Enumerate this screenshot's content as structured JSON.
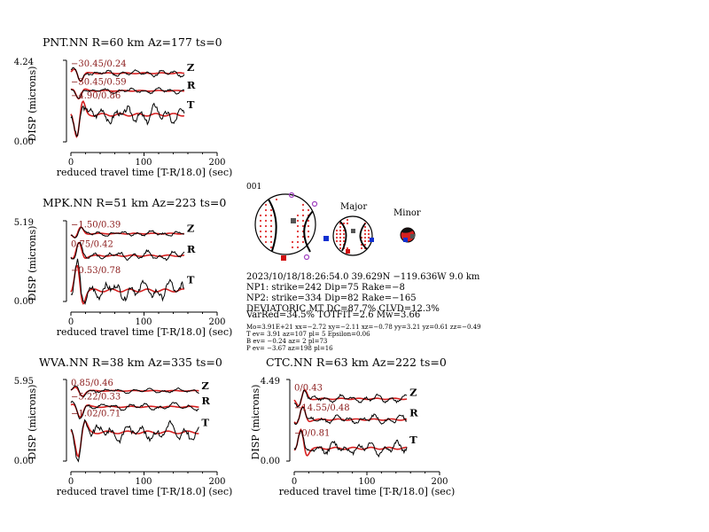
{
  "chart_data": [
    {
      "type": "line",
      "title": "PNT.NN R=60 km Az=177 ts=0",
      "xlabel": "reduced travel time [T-R/18.0] (sec)",
      "ylabel": "DISP (microns)",
      "xlim": [
        0,
        200
      ],
      "xticks": [
        "0",
        "100",
        "200"
      ],
      "ymax_label": "4.24",
      "ymin_label": "0.00",
      "series": [
        {
          "name": "Z",
          "label": "−30.45/0.24",
          "length": 155,
          "level": 0.86,
          "amp": 0.07,
          "seed": 1
        },
        {
          "name": "R",
          "label": "−30.45/0.59",
          "length": 155,
          "level": 0.64,
          "amp": 0.06,
          "seed": 2
        },
        {
          "name": "T",
          "label": "−4.90/0.86",
          "length": 155,
          "level": 0.34,
          "amp": 0.2,
          "seed": 3
        }
      ]
    },
    {
      "type": "line",
      "title": "MPK.NN R=51 km Az=223 ts=0",
      "xlabel": "reduced travel time [T-R/18.0] (sec)",
      "ylabel": "DISP (microns)",
      "xlim": [
        0,
        200
      ],
      "xticks": [
        "0",
        "100",
        "200"
      ],
      "ymax_label": "5.19",
      "ymin_label": "0.00",
      "series": [
        {
          "name": "Z",
          "label": "−1.50/0.39",
          "length": 155,
          "level": 0.86,
          "amp": 0.06,
          "seed": 4
        },
        {
          "name": "R",
          "label": "0.75/0.42",
          "length": 155,
          "level": 0.58,
          "amp": 0.1,
          "seed": 5
        },
        {
          "name": "T",
          "label": "−0.53/0.78",
          "length": 155,
          "level": 0.14,
          "amp": 0.22,
          "seed": 6
        }
      ]
    },
    {
      "type": "line",
      "title": "WVA.NN R=38 km Az=335 ts=0",
      "xlabel": "reduced travel time [T-R/18.0] (sec)",
      "ylabel": "DISP (microns)",
      "xlim": [
        0,
        200
      ],
      "xticks": [
        "0",
        "100",
        "200"
      ],
      "ymax_label": "5.95",
      "ymin_label": "0.00",
      "series": [
        {
          "name": "Z",
          "label": "0.85/0.46",
          "length": 175,
          "level": 0.88,
          "amp": 0.05,
          "seed": 7
        },
        {
          "name": "R",
          "label": "−5.22/0.33",
          "length": 175,
          "level": 0.68,
          "amp": 0.08,
          "seed": 8
        },
        {
          "name": "T",
          "label": "−1.02/0.71",
          "length": 175,
          "level": 0.36,
          "amp": 0.2,
          "seed": 9
        }
      ]
    },
    {
      "type": "line",
      "title": "CTC.NN R=63 km Az=222 ts=0",
      "xlabel": "reduced travel time [T-R/18.0] (sec)",
      "ylabel": "DISP (microns)",
      "xlim": [
        0,
        200
      ],
      "xticks": [
        "0",
        "100",
        "200"
      ],
      "ymax_label": "4.49",
      "ymin_label": "0.00",
      "series": [
        {
          "name": "Z",
          "label": "0/0.43",
          "length": 155,
          "level": 0.78,
          "amp": 0.09,
          "seed": 10
        },
        {
          "name": "R",
          "label": "−14.55/0.48",
          "length": 155,
          "level": 0.52,
          "amp": 0.1,
          "seed": 11
        },
        {
          "name": "T",
          "label": "−0/0.81",
          "length": 155,
          "level": 0.16,
          "amp": 0.15,
          "seed": 12
        }
      ]
    }
  ],
  "event": {
    "id": "001",
    "major_label": "Major",
    "minor_label": "Minor",
    "lines": [
      "2023/10/18/18:26:54.0 39.629N −119.636W 9.0 km",
      "NP1: strike=242 Dip=75 Rake=−8",
      "NP2: strike=334 Dip=82 Rake=−165",
      "DEVIATORIC MT DC=87.7% CLVD=12.3%",
      "VarRed=34.5% TOTFIT=2.6 Mw=3.66"
    ],
    "small_lines": [
      "Mo=3.91E+21 xx=−2.72 xy=−2.11 xz=−0.78 yy=3.21 yz=0.61 zz=−0.49",
      "T ev= 3.91 az=107 pl= 5 Epsilon=0.06",
      "B ev= −0.24 az= 2 pl=73",
      "P ev= −3.67 az=198 pl=16"
    ],
    "colors": {
      "data": "#000000",
      "synthetic": "#d62020",
      "text_red": "#8a1a1a",
      "compression": "#e03030",
      "tension": "#ffffff",
      "p_axis": "#d01010",
      "t_axis": "#1030d0",
      "b_axis": "#555555",
      "station": "#a040c0"
    }
  }
}
